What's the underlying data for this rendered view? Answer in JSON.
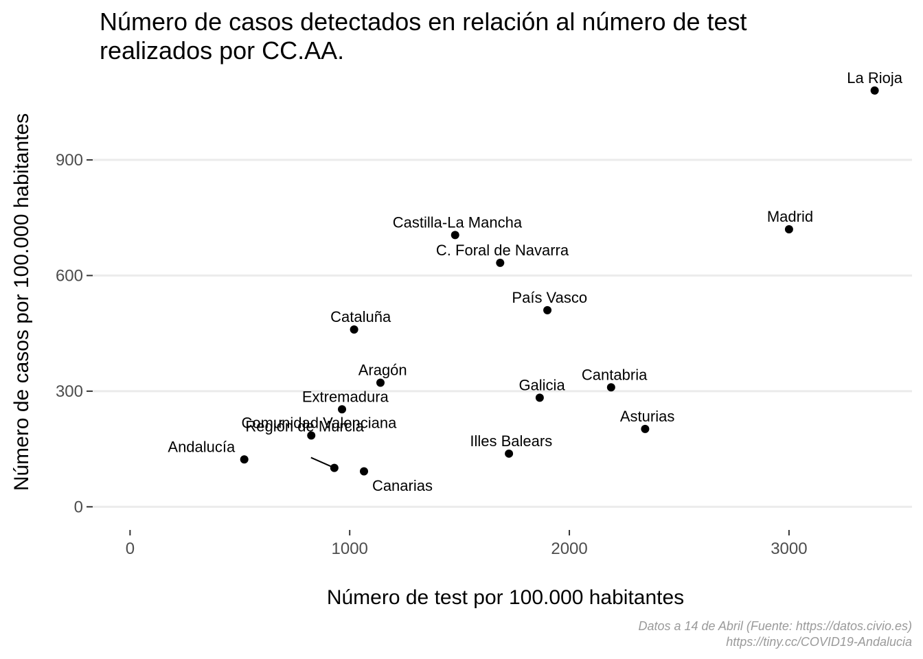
{
  "chart_data": {
    "type": "scatter",
    "title_lines": [
      "Número de casos detectados en relación al número de test",
      "realizados por CC.AA."
    ],
    "xlabel": "Número de test por 100.000 habitantes",
    "ylabel": "Número de casos por 100.000 habitantes",
    "caption_lines": [
      "Datos a 14 de Abril (Fuente: https://datos.civio.es)",
      "https://tiny.cc/COVID19-Andalucia"
    ],
    "xlim": [
      -170,
      3560
    ],
    "ylim": [
      -60,
      1110
    ],
    "x_ticks": [
      0,
      1000,
      2000,
      3000
    ],
    "x_tick_labels": [
      "0",
      "1000",
      "2000",
      "3000"
    ],
    "y_ticks": [
      0,
      300,
      600,
      900
    ],
    "y_tick_labels": [
      "0",
      "300",
      "600",
      "900"
    ],
    "grid": "horizontal",
    "point_color": "#000000",
    "points": [
      {
        "name": "La Rioja",
        "x": 3390,
        "y": 1080,
        "label_dx": 0,
        "label_dy": 1.3,
        "leader": false
      },
      {
        "name": "Madrid",
        "x": 3000,
        "y": 720,
        "label_dx": 5,
        "label_dy": 1.3,
        "leader": false
      },
      {
        "name": "Castilla-La Mancha",
        "x": 1480,
        "y": 705,
        "label_dx": 10,
        "label_dy": 1.3,
        "leader": false
      },
      {
        "name": "C. Foral de Navarra",
        "x": 1685,
        "y": 633,
        "label_dx": 10,
        "label_dy": 1.3,
        "leader": false
      },
      {
        "name": "País Vasco",
        "x": 1900,
        "y": 510,
        "label_dx": 10,
        "label_dy": 1.3,
        "leader": false
      },
      {
        "name": "Cataluña",
        "x": 1020,
        "y": 460,
        "label_dx": 30,
        "label_dy": 1.3,
        "leader": false
      },
      {
        "name": "Aragón",
        "x": 1140,
        "y": 322,
        "label_dx": 10,
        "label_dy": 1.3,
        "leader": false
      },
      {
        "name": "Cantabria",
        "x": 2190,
        "y": 310,
        "label_dx": 15,
        "label_dy": 1.3,
        "leader": false
      },
      {
        "name": "Galicia",
        "x": 1865,
        "y": 283,
        "label_dx": 10,
        "label_dy": 1.3,
        "leader": false
      },
      {
        "name": "Extremadura",
        "x": 965,
        "y": 253,
        "label_dx": 15,
        "label_dy": 1.3,
        "leader": false
      },
      {
        "name": "Asturias",
        "x": 2345,
        "y": 202,
        "label_dx": 10,
        "label_dy": 1.3,
        "leader": false
      },
      {
        "name": "Comunidad Valenciana",
        "x": 825,
        "y": 185,
        "label_dx": 35,
        "label_dy": 1.3,
        "leader": false
      },
      {
        "name": "Illes Balears",
        "x": 1725,
        "y": 138,
        "label_dx": 10,
        "label_dy": 1.3,
        "leader": false
      },
      {
        "name": "Andalucía",
        "x": 520,
        "y": 123,
        "label_dx": -195,
        "label_dy": 1.3,
        "leader": false
      },
      {
        "name": "Región de Murcia",
        "x": 930,
        "y": 101,
        "label_dx": -135,
        "label_dy": 4.2,
        "leader": true
      },
      {
        "name": "Canarias",
        "x": 1065,
        "y": 92,
        "label_dx": 175,
        "label_dy": -1.4,
        "leader": false
      }
    ]
  }
}
